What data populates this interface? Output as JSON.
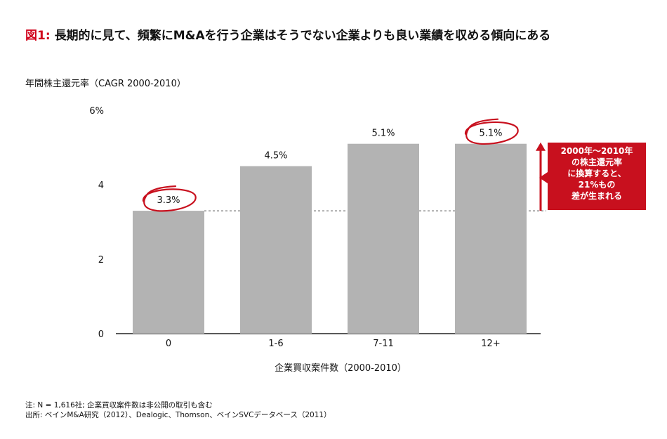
{
  "title_prefix": "図1:",
  "title_text": "長期的に見て、頻繁にM&Aを行う企業はそうでない企業よりも良い業績を収める傾向にある",
  "callout_lines": [
    "2000年〜2010年",
    "の株主還元率",
    "に換算すると、",
    "21%もの",
    "差が生まれる"
  ],
  "notes": {
    "note": "注: N = 1,616社; 企業買収案件数は非公開の取引も含む",
    "source": "出所: ベインM&A研究（2012）、Dealogic、Thomson、ベインSVCデータベース（2011）"
  },
  "colors": {
    "accent": "#c8101e",
    "bar": "#b3b3b3",
    "title_prefix": "#d0021b"
  },
  "chart_data": {
    "type": "bar",
    "ylabel": "年間株主還元率（CAGR 2000-2010）",
    "xlabel": "企業買収案件数（2000-2010）",
    "categories": [
      "0",
      "1-6",
      "7-11",
      "12+"
    ],
    "values": [
      3.3,
      4.5,
      5.1,
      5.1
    ],
    "value_labels": [
      "3.3%",
      "4.5%",
      "5.1%",
      "5.1%"
    ],
    "ylim": [
      0,
      6
    ],
    "yticks": [
      0,
      2,
      4,
      6
    ],
    "ytick_labels": [
      "0",
      "2",
      "4",
      "6%"
    ],
    "reference_line_value": 3.3,
    "circled_categories": [
      "0",
      "12+"
    ],
    "grid": false
  }
}
